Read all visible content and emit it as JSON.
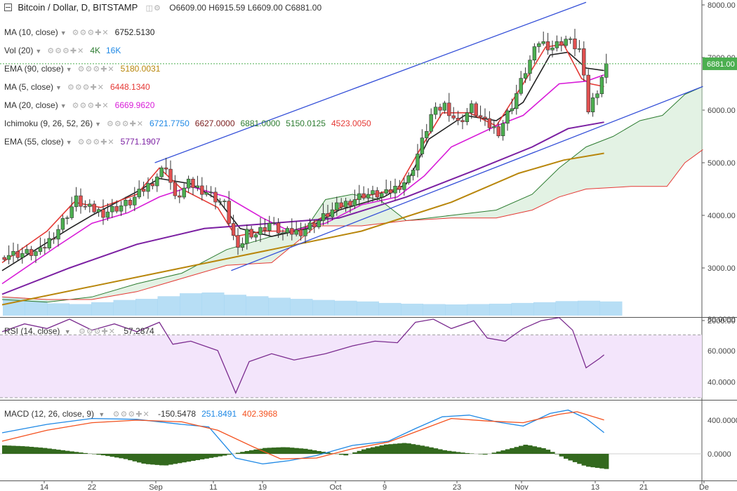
{
  "header": {
    "symbol": "Bitcoin / Dollar, D, BITSTAMP",
    "ohlc": "O6609.00  H6915.59  L6609.00  C6881.00"
  },
  "indicators": [
    {
      "name": "MA (10, close)",
      "values": [
        {
          "text": "6752.5130",
          "color": "#222222"
        }
      ]
    },
    {
      "name": "Vol (20)",
      "values": [
        {
          "text": "4K",
          "color": "#2e7d32"
        },
        {
          "text": "16K",
          "color": "#1e88e5"
        }
      ]
    },
    {
      "name": "EMA (90, close)",
      "values": [
        {
          "text": "5180.0031",
          "color": "#b8860b"
        }
      ]
    },
    {
      "name": "MA (5, close)",
      "values": [
        {
          "text": "6448.1340",
          "color": "#e53935"
        }
      ]
    },
    {
      "name": "MA (20, close)",
      "values": [
        {
          "text": "6669.9620",
          "color": "#d81bd8"
        }
      ]
    },
    {
      "name": "Ichimoku (9, 26, 52, 26)",
      "values": [
        {
          "text": "6721.7750",
          "color": "#1e88e5"
        },
        {
          "text": "6627.0000",
          "color": "#7b1e1e"
        },
        {
          "text": "6881.0000",
          "color": "#2e7d32"
        },
        {
          "text": "5150.0125",
          "color": "#2e7d32"
        },
        {
          "text": "4523.0050",
          "color": "#e53935"
        }
      ]
    },
    {
      "name": "EMA (55, close)",
      "values": [
        {
          "text": "5771.1907",
          "color": "#7b1fa2"
        }
      ]
    }
  ],
  "rsi": {
    "name": "RSI (14, close)",
    "value": "57.2874",
    "value_color": "#333333"
  },
  "macd": {
    "name": "MACD (12, 26, close, 9)",
    "values": [
      {
        "text": "-150.5478",
        "color": "#333333"
      },
      {
        "text": "251.8491",
        "color": "#1e88e5"
      },
      {
        "text": "402.3968",
        "color": "#f4511e"
      }
    ]
  },
  "price_tag": "6881.00",
  "chart_data": {
    "type": "candlestick",
    "price_axis": {
      "range": [
        2000,
        8000
      ],
      "ticks": [
        "2000.00",
        "3000.00",
        "4000.00",
        "5000.00",
        "6000.00",
        "7000.00",
        "8000.00"
      ]
    },
    "rsi_axis": {
      "range": [
        30,
        80
      ],
      "ticks": [
        "40.0000",
        "60.0000",
        "80.0000"
      ],
      "bands": [
        30,
        70
      ]
    },
    "macd_axis": {
      "range": [
        -300,
        600
      ],
      "ticks": [
        "0.0000",
        "400.0000"
      ]
    },
    "time_axis": {
      "labels": [
        "14",
        "22",
        "Sep",
        "11",
        "19",
        "Oct",
        "9",
        "23",
        "Nov",
        "13",
        "21",
        "De"
      ]
    },
    "last_close": 6881.0,
    "close_path": [
      [
        0,
        3250
      ],
      [
        8,
        3300
      ],
      [
        12,
        3750
      ],
      [
        16,
        4300
      ],
      [
        18,
        4150
      ],
      [
        22,
        4050
      ],
      [
        28,
        4250
      ],
      [
        33,
        4650
      ],
      [
        36,
        4950
      ],
      [
        38,
        4300
      ],
      [
        41,
        4600
      ],
      [
        45,
        4450
      ],
      [
        49,
        4200
      ],
      [
        52,
        3300
      ],
      [
        54,
        3700
      ],
      [
        56,
        3650
      ],
      [
        59,
        3850
      ],
      [
        62,
        3650
      ],
      [
        66,
        3700
      ],
      [
        70,
        3900
      ],
      [
        74,
        4150
      ],
      [
        80,
        4400
      ],
      [
        85,
        4400
      ],
      [
        90,
        4700
      ],
      [
        93,
        5400
      ],
      [
        95,
        5900
      ],
      [
        98,
        6100
      ],
      [
        101,
        5750
      ],
      [
        104,
        6050
      ],
      [
        107,
        5750
      ],
      [
        110,
        5600
      ],
      [
        113,
        6100
      ],
      [
        116,
        6750
      ],
      [
        119,
        7300
      ],
      [
        122,
        7200
      ],
      [
        125,
        7350
      ],
      [
        128,
        7150
      ],
      [
        130,
        6000
      ],
      [
        132,
        6400
      ],
      [
        134,
        6881
      ]
    ],
    "series": [
      {
        "name": "MA (10, close)",
        "color": "#222222",
        "points": [
          [
            0,
            2950
          ],
          [
            15,
            3750
          ],
          [
            20,
            4000
          ],
          [
            30,
            4450
          ],
          [
            35,
            4700
          ],
          [
            42,
            4600
          ],
          [
            48,
            4300
          ],
          [
            53,
            3750
          ],
          [
            60,
            3600
          ],
          [
            68,
            3750
          ],
          [
            75,
            4100
          ],
          [
            85,
            4350
          ],
          [
            90,
            4600
          ],
          [
            95,
            5450
          ],
          [
            103,
            5900
          ],
          [
            110,
            5800
          ],
          [
            116,
            6150
          ],
          [
            122,
            7050
          ],
          [
            126,
            7100
          ],
          [
            130,
            6800
          ],
          [
            134,
            6752.513
          ]
        ]
      },
      {
        "name": "MA (5, close)",
        "color": "#e53935",
        "points": [
          [
            0,
            3100
          ],
          [
            10,
            3700
          ],
          [
            16,
            4250
          ],
          [
            22,
            4150
          ],
          [
            30,
            4400
          ],
          [
            35,
            4900
          ],
          [
            40,
            4500
          ],
          [
            48,
            4150
          ],
          [
            52,
            3600
          ],
          [
            58,
            3700
          ],
          [
            66,
            3700
          ],
          [
            72,
            4000
          ],
          [
            80,
            4350
          ],
          [
            88,
            4500
          ],
          [
            93,
            5250
          ],
          [
            98,
            5950
          ],
          [
            104,
            5950
          ],
          [
            110,
            5700
          ],
          [
            116,
            6500
          ],
          [
            121,
            7200
          ],
          [
            125,
            7250
          ],
          [
            129,
            6600
          ],
          [
            131,
            6500
          ],
          [
            134,
            6448.134
          ]
        ]
      },
      {
        "name": "MA (20, close)",
        "color": "#d81bd8",
        "points": [
          [
            0,
            2700
          ],
          [
            12,
            3400
          ],
          [
            20,
            3850
          ],
          [
            28,
            4050
          ],
          [
            35,
            4350
          ],
          [
            42,
            4550
          ],
          [
            50,
            4350
          ],
          [
            58,
            3950
          ],
          [
            64,
            3700
          ],
          [
            72,
            3850
          ],
          [
            80,
            4200
          ],
          [
            88,
            4350
          ],
          [
            94,
            4750
          ],
          [
            100,
            5300
          ],
          [
            110,
            5700
          ],
          [
            116,
            5900
          ],
          [
            124,
            6500
          ],
          [
            130,
            6550
          ],
          [
            134,
            6669.962
          ]
        ]
      },
      {
        "name": "EMA (55, close)",
        "color": "#7b1fa2",
        "points": [
          [
            0,
            2500
          ],
          [
            15,
            3000
          ],
          [
            30,
            3450
          ],
          [
            45,
            3750
          ],
          [
            60,
            3850
          ],
          [
            75,
            3950
          ],
          [
            90,
            4350
          ],
          [
            105,
            4850
          ],
          [
            118,
            5300
          ],
          [
            126,
            5650
          ],
          [
            134,
            5771.1907
          ]
        ]
      },
      {
        "name": "EMA (90, close)",
        "color": "#b8860b",
        "points": [
          [
            0,
            2300
          ],
          [
            20,
            2650
          ],
          [
            40,
            3000
          ],
          [
            60,
            3350
          ],
          [
            80,
            3700
          ],
          [
            100,
            4250
          ],
          [
            115,
            4800
          ],
          [
            125,
            5050
          ],
          [
            134,
            5180.0031
          ]
        ]
      }
    ],
    "ichimoku_cloud": {
      "span_a": [
        [
          0,
          2400
        ],
        [
          10,
          2350
        ],
        [
          20,
          2450
        ],
        [
          30,
          2700
        ],
        [
          40,
          2900
        ],
        [
          50,
          3350
        ],
        [
          60,
          3600
        ],
        [
          68,
          3800
        ],
        [
          72,
          4300
        ],
        [
          78,
          4400
        ],
        [
          84,
          4300
        ],
        [
          90,
          3900
        ],
        [
          100,
          4000
        ],
        [
          110,
          4100
        ],
        [
          118,
          4400
        ],
        [
          124,
          4900
        ],
        [
          130,
          5300
        ],
        [
          136,
          5500
        ],
        [
          142,
          5800
        ],
        [
          147,
          5900
        ],
        [
          152,
          6300
        ],
        [
          156,
          6450
        ]
      ],
      "span_b": [
        [
          0,
          2450
        ],
        [
          10,
          2400
        ],
        [
          20,
          2400
        ],
        [
          30,
          2550
        ],
        [
          40,
          2800
        ],
        [
          50,
          3050
        ],
        [
          60,
          3100
        ],
        [
          70,
          3800
        ],
        [
          80,
          3800
        ],
        [
          90,
          3900
        ],
        [
          100,
          3950
        ],
        [
          110,
          3950
        ],
        [
          118,
          4100
        ],
        [
          124,
          4350
        ],
        [
          130,
          4500
        ],
        [
          140,
          4550
        ],
        [
          148,
          4550
        ],
        [
          152,
          5000
        ],
        [
          156,
          5250
        ]
      ]
    },
    "channel": {
      "color": "#3550d8",
      "upper": [
        [
          34,
          5000
        ],
        [
          130,
          8050
        ]
      ],
      "lower": [
        [
          51,
          2950
        ],
        [
          156,
          6450
        ]
      ]
    },
    "volume_profile": [
      480,
      400,
      330,
      310,
      360,
      420,
      450,
      520,
      600,
      620,
      560,
      520,
      480,
      450,
      420,
      400,
      380,
      340,
      320,
      310,
      300,
      310,
      320,
      340,
      360,
      390,
      400,
      380
    ],
    "rsi_path": [
      [
        0,
        72
      ],
      [
        5,
        77
      ],
      [
        10,
        74
      ],
      [
        15,
        80
      ],
      [
        20,
        73
      ],
      [
        25,
        77
      ],
      [
        30,
        72
      ],
      [
        35,
        78
      ],
      [
        38,
        64
      ],
      [
        42,
        66
      ],
      [
        48,
        60
      ],
      [
        52,
        33
      ],
      [
        55,
        53
      ],
      [
        60,
        58
      ],
      [
        65,
        54
      ],
      [
        72,
        58
      ],
      [
        78,
        63
      ],
      [
        83,
        66
      ],
      [
        88,
        65
      ],
      [
        92,
        78
      ],
      [
        96,
        80
      ],
      [
        100,
        74
      ],
      [
        105,
        79
      ],
      [
        108,
        68
      ],
      [
        112,
        66
      ],
      [
        116,
        74
      ],
      [
        120,
        79
      ],
      [
        124,
        81
      ],
      [
        127,
        73
      ],
      [
        130,
        49
      ],
      [
        133,
        55
      ],
      [
        134,
        57.2874
      ]
    ],
    "macd_line": [
      [
        0,
        250
      ],
      [
        10,
        350
      ],
      [
        20,
        420
      ],
      [
        30,
        410
      ],
      [
        40,
        350
      ],
      [
        46,
        320
      ],
      [
        52,
        -50
      ],
      [
        58,
        -120
      ],
      [
        64,
        -80
      ],
      [
        70,
        -20
      ],
      [
        78,
        100
      ],
      [
        86,
        150
      ],
      [
        92,
        300
      ],
      [
        98,
        440
      ],
      [
        104,
        460
      ],
      [
        110,
        380
      ],
      [
        116,
        330
      ],
      [
        122,
        480
      ],
      [
        126,
        520
      ],
      [
        130,
        420
      ],
      [
        134,
        251.8491
      ]
    ],
    "signal_line": [
      [
        0,
        150
      ],
      [
        10,
        280
      ],
      [
        20,
        370
      ],
      [
        30,
        400
      ],
      [
        40,
        380
      ],
      [
        48,
        280
      ],
      [
        56,
        80
      ],
      [
        62,
        -60
      ],
      [
        70,
        -50
      ],
      [
        78,
        60
      ],
      [
        86,
        140
      ],
      [
        94,
        300
      ],
      [
        100,
        420
      ],
      [
        108,
        390
      ],
      [
        116,
        370
      ],
      [
        124,
        470
      ],
      [
        128,
        500
      ],
      [
        134,
        402.3968
      ]
    ],
    "histogram": [
      100,
      90,
      70,
      40,
      10,
      -20,
      -60,
      -120,
      -140,
      -100,
      -60,
      -20,
      30,
      70,
      80,
      60,
      20,
      -20,
      60,
      110,
      130,
      90,
      40,
      10,
      -10,
      50,
      110,
      60,
      -60,
      -150,
      -180
    ]
  }
}
